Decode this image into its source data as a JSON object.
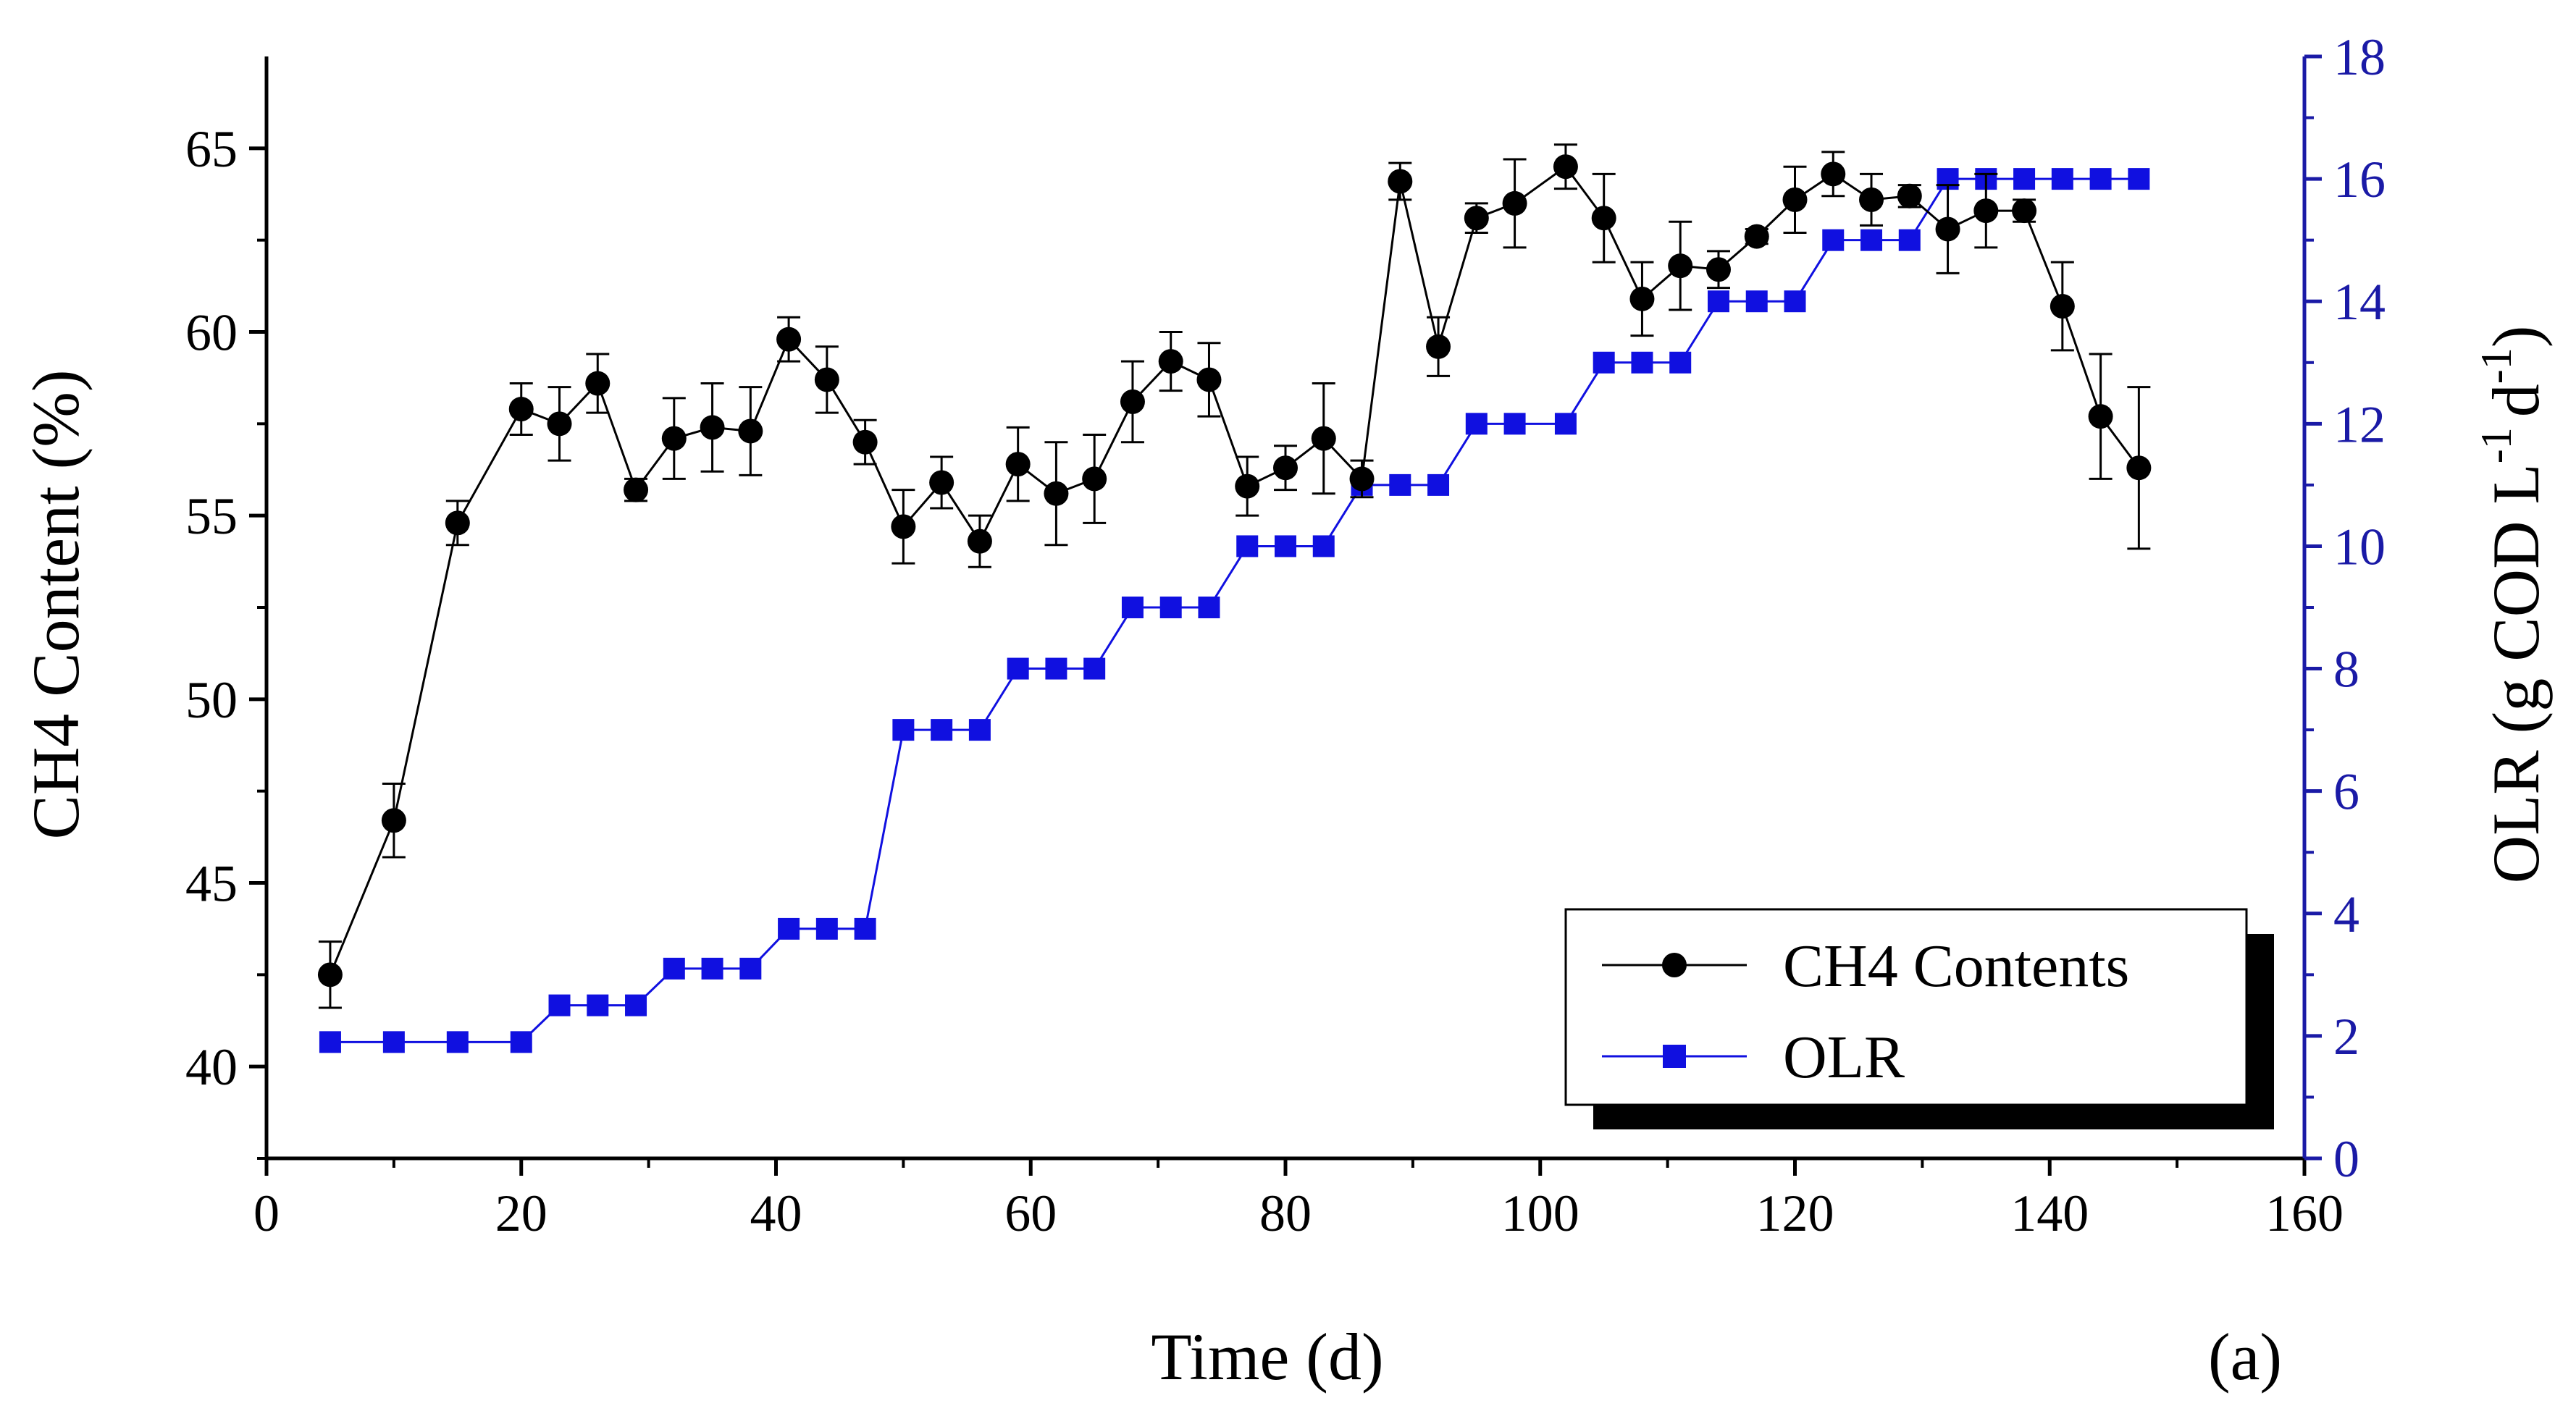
{
  "chart_data": {
    "type": "line",
    "panel_label": "(a)",
    "xlabel": "Time (d)",
    "ylabel_left": "CH4 Content (%)",
    "ylabel_right_parts": [
      "OLR (g COD L",
      "-1",
      "d",
      "-1",
      ")"
    ],
    "xlim": [
      0,
      160
    ],
    "x_ticks": [
      0,
      20,
      40,
      60,
      80,
      100,
      120,
      140,
      160
    ],
    "ylim_left": [
      37.5,
      67.5
    ],
    "y_ticks_left": [
      40,
      45,
      50,
      55,
      60,
      65
    ],
    "ylim_right": [
      0,
      18
    ],
    "y_ticks_right": [
      0,
      2,
      4,
      6,
      8,
      10,
      12,
      14,
      16,
      18
    ],
    "colors": {
      "ch4": "#000000",
      "olr": "#1010e0",
      "right_axis": "#1a1aa6"
    },
    "legend": {
      "position": "bottom-right",
      "entries": [
        "CH4 Contents",
        "OLR"
      ]
    },
    "series": [
      {
        "name": "CH4 Contents",
        "axis": "left",
        "marker": "circle",
        "x": [
          5,
          10,
          15,
          20,
          23,
          26,
          29,
          32,
          35,
          38,
          41,
          44,
          47,
          50,
          53,
          56,
          59,
          62,
          65,
          68,
          71,
          74,
          77,
          80,
          83,
          86,
          89,
          92,
          95,
          98,
          102,
          105,
          108,
          111,
          114,
          117,
          120,
          123,
          126,
          129,
          132,
          135,
          138,
          141,
          144,
          147
        ],
        "y": [
          42.5,
          46.7,
          54.8,
          57.9,
          57.5,
          58.6,
          55.7,
          57.1,
          57.4,
          57.3,
          59.8,
          58.7,
          57.0,
          54.7,
          55.9,
          54.3,
          56.4,
          55.6,
          56.0,
          58.1,
          59.2,
          58.7,
          55.8,
          56.3,
          57.1,
          56.0,
          64.1,
          59.6,
          63.1,
          63.5,
          64.5,
          63.1,
          60.9,
          61.8,
          61.7,
          62.6,
          63.6,
          64.3,
          63.6,
          63.7,
          62.8,
          63.3,
          63.3,
          60.7,
          57.7,
          56.3
        ],
        "err": [
          0.9,
          1.0,
          0.6,
          0.7,
          1.0,
          0.8,
          0.3,
          1.1,
          1.2,
          1.2,
          0.6,
          0.9,
          0.6,
          1.0,
          0.7,
          0.7,
          1.0,
          1.4,
          1.2,
          1.1,
          0.8,
          1.0,
          0.8,
          0.6,
          1.5,
          0.5,
          0.5,
          0.8,
          0.4,
          1.2,
          0.6,
          1.2,
          1.0,
          1.2,
          0.5,
          0.2,
          0.9,
          0.6,
          0.7,
          0.3,
          1.2,
          1.0,
          0.3,
          1.2,
          1.7,
          2.2
        ]
      },
      {
        "name": "OLR",
        "axis": "right",
        "marker": "square",
        "x": [
          5,
          10,
          15,
          20,
          23,
          26,
          29,
          32,
          35,
          38,
          41,
          44,
          47,
          50,
          53,
          56,
          59,
          62,
          65,
          68,
          71,
          74,
          77,
          80,
          83,
          86,
          89,
          92,
          95,
          98,
          102,
          105,
          108,
          111,
          114,
          117,
          120,
          123,
          126,
          129,
          132,
          135,
          138,
          141,
          144,
          147
        ],
        "y": [
          1.9,
          1.9,
          1.9,
          1.9,
          2.5,
          2.5,
          2.5,
          3.1,
          3.1,
          3.1,
          3.75,
          3.75,
          3.75,
          7.0,
          7.0,
          7.0,
          8.0,
          8.0,
          8.0,
          9.0,
          9.0,
          9.0,
          10.0,
          10.0,
          10.0,
          11.0,
          11.0,
          11.0,
          12.0,
          12.0,
          12.0,
          13.0,
          13.0,
          13.0,
          14.0,
          14.0,
          14.0,
          15.0,
          15.0,
          15.0,
          16.0,
          16.0,
          16.0,
          16.0,
          16.0,
          16.0
        ]
      }
    ]
  }
}
